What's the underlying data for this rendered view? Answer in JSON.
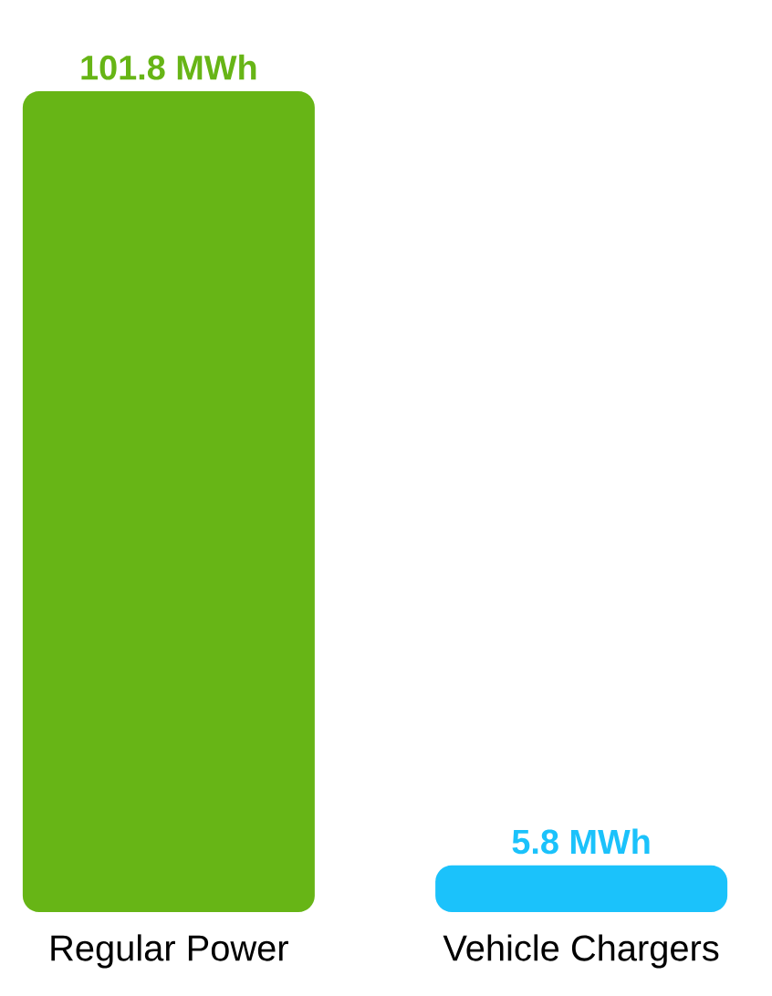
{
  "chart_data": {
    "type": "bar",
    "categories": [
      "Regular Power",
      "Vehicle Chargers"
    ],
    "values": [
      101.8,
      5.8
    ],
    "colors": [
      "#67b516",
      "#1bc2fb"
    ],
    "value_labels": [
      "101.8 MWh",
      "5.8 MWh"
    ]
  }
}
